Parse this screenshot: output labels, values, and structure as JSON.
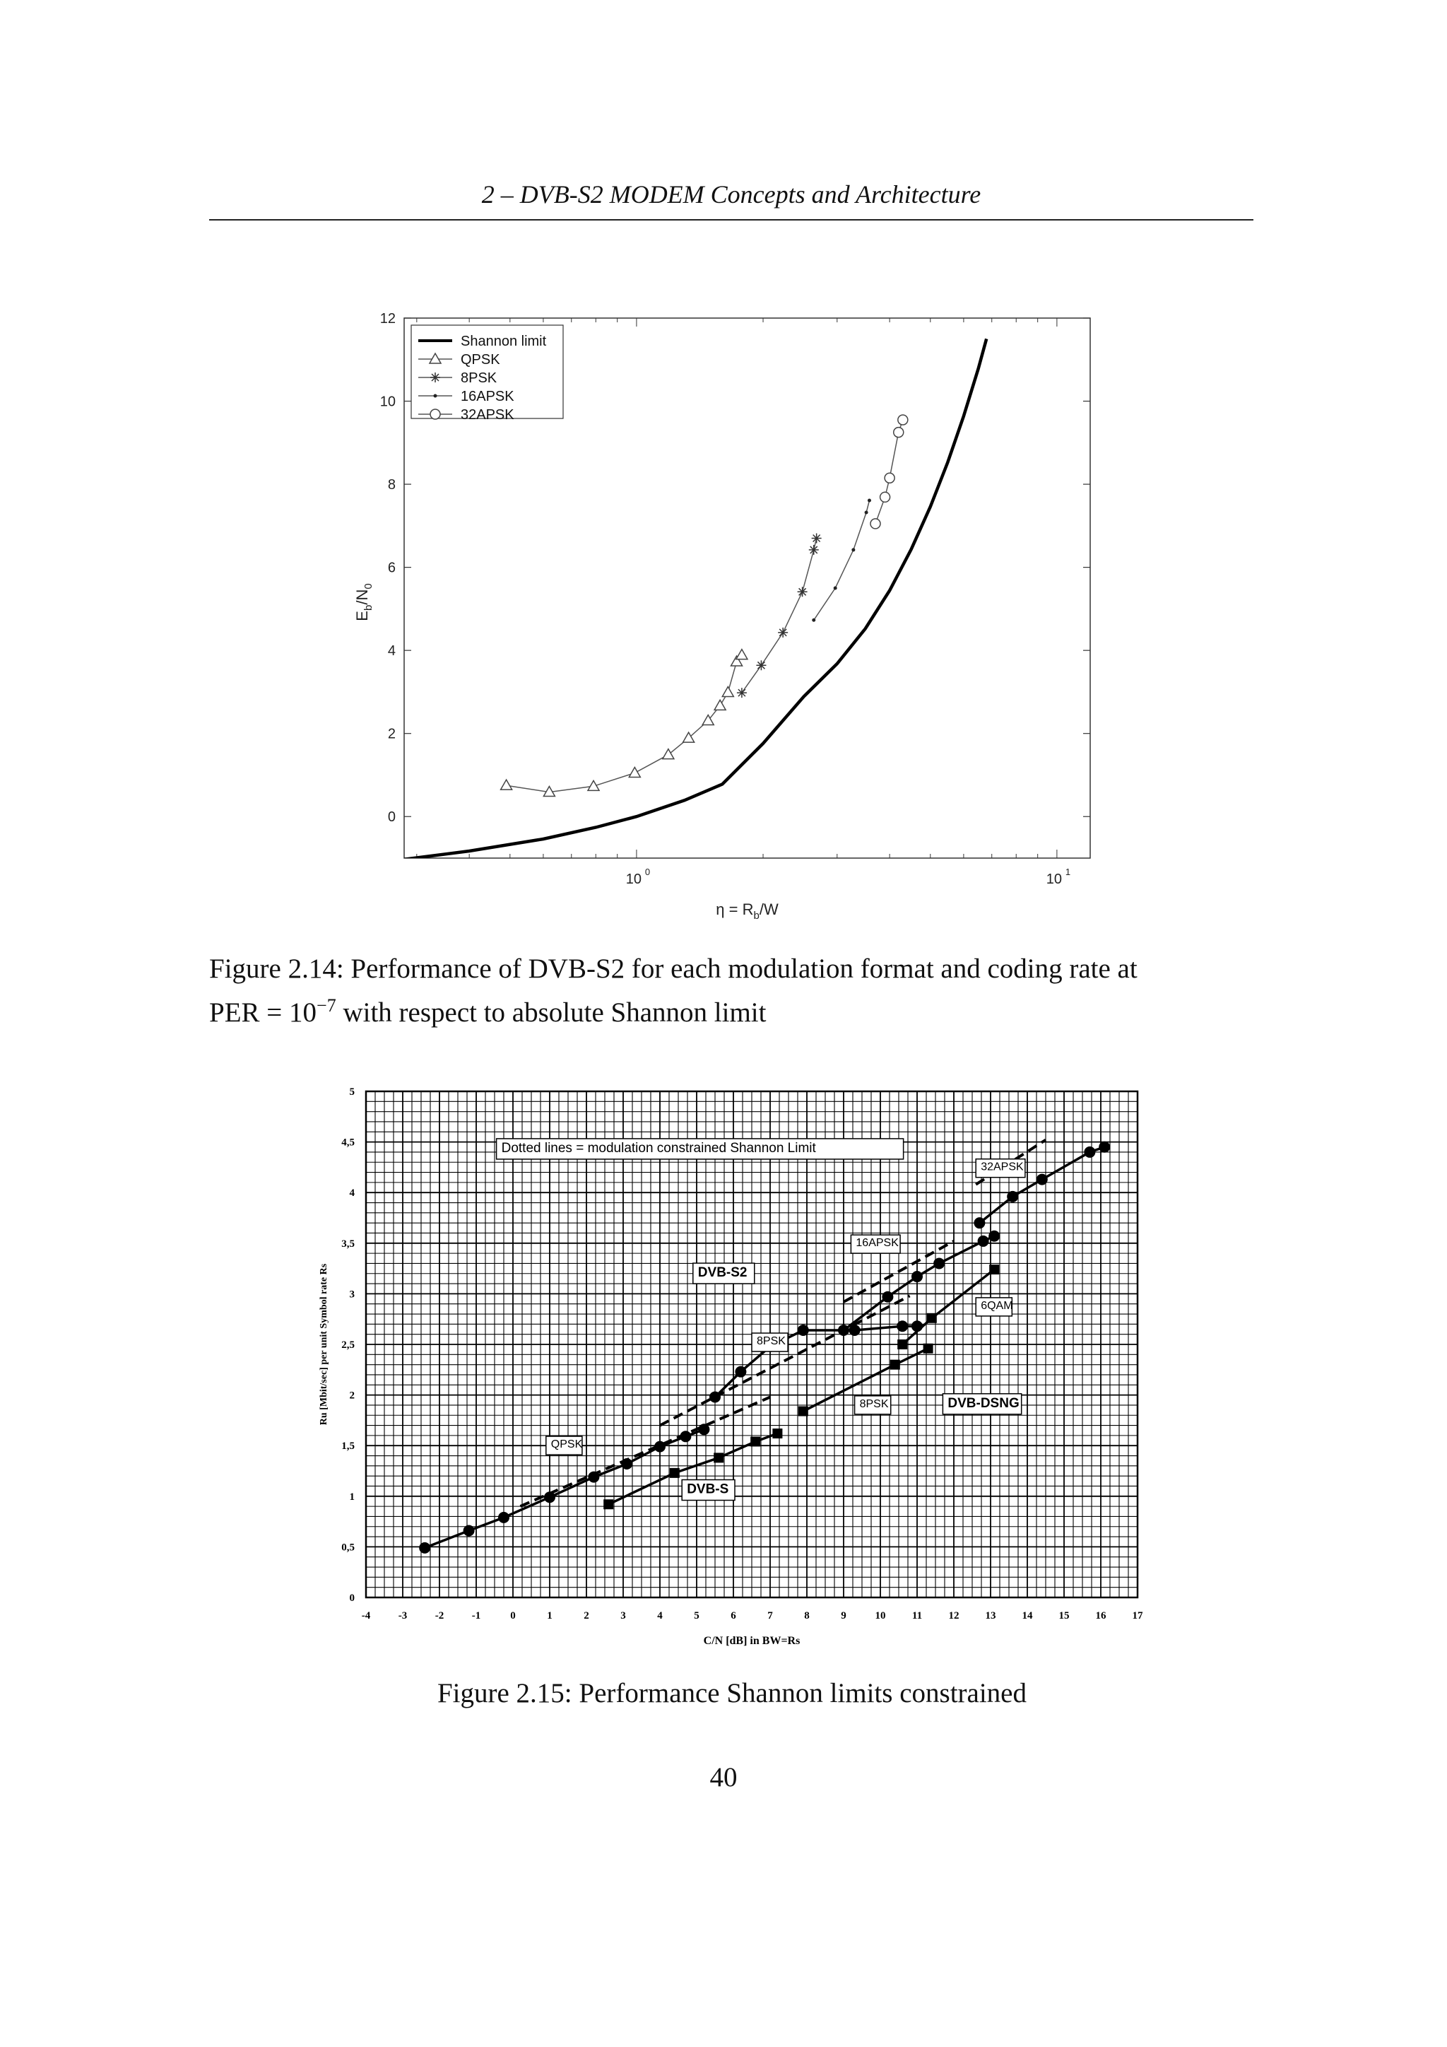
{
  "header": {
    "running_title": "2 – DVB-S2 MODEM Concepts and Architecture"
  },
  "figure1": {
    "caption_line1": "Figure 2.14: Performance of DVB-S2 for each modulation format and coding rate at",
    "caption_line2_prefix": "PER = 10",
    "caption_line2_exp": "−7",
    "caption_line2_suffix": " with respect to absolute Shannon limit"
  },
  "figure2": {
    "caption": "Figure 2.15: Performance Shannon limits constrained",
    "labels": {
      "dotted_note": "Dotted lines = modulation constrained Shannon Limit",
      "dvb_s2": "DVB-S2",
      "dvb_dsng": "DVB-DSNG",
      "dvb_s": "DVB-S",
      "qpsk": "QPSK",
      "psk8_s2": "8PSK",
      "psk8_dsng": "8PSK",
      "apsk16": "16APSK",
      "apsk32": "32APSK",
      "qam16": "6QAM"
    }
  },
  "page": {
    "number": "40"
  },
  "chart_data": [
    {
      "type": "line",
      "xlabel": "η = R_b/W",
      "ylabel": "E_b/N_0",
      "xscale": "log",
      "xlim": [
        0.28,
        12
      ],
      "ylim": [
        -1,
        12
      ],
      "yticks": [
        0,
        2,
        4,
        6,
        8,
        10,
        12
      ],
      "xtick_labels": [
        {
          "base": "10",
          "exp": "0",
          "value": 1
        },
        {
          "base": "10",
          "exp": "1",
          "value": 10
        }
      ],
      "legend_position": "top-left",
      "series": [
        {
          "name": "Shannon limit",
          "marker": "none",
          "color": "#000000",
          "x": [
            0.28,
            0.4,
            0.6,
            0.8,
            1.0,
            1.3,
            1.6,
            2.0,
            2.5,
            3.0,
            3.5,
            4.0,
            4.5,
            5.0,
            5.5,
            6.0,
            6.5,
            6.8
          ],
          "y": [
            -1.03,
            -0.83,
            -0.54,
            -0.26,
            0.0,
            0.39,
            0.78,
            1.76,
            2.89,
            3.68,
            4.52,
            5.44,
            6.43,
            7.46,
            8.53,
            9.64,
            10.78,
            11.5
          ]
        },
        {
          "name": "QPSK",
          "marker": "triangle",
          "color": "#555555",
          "x": [
            0.49,
            0.62,
            0.79,
            0.99,
            1.19,
            1.33,
            1.48,
            1.58,
            1.65,
            1.73,
            1.78
          ],
          "y": [
            0.75,
            0.59,
            0.73,
            1.05,
            1.49,
            1.89,
            2.31,
            2.67,
            2.99,
            3.73,
            3.89
          ]
        },
        {
          "name": "8PSK",
          "marker": "star",
          "color": "#555555",
          "x": [
            1.78,
            1.98,
            2.23,
            2.48,
            2.64,
            2.68
          ],
          "y": [
            2.98,
            3.64,
            4.43,
            5.41,
            6.42,
            6.7
          ]
        },
        {
          "name": "16APSK",
          "marker": "dot",
          "color": "#555555",
          "x": [
            2.64,
            2.97,
            3.28,
            3.52,
            3.58
          ],
          "y": [
            4.73,
            5.5,
            6.42,
            7.32,
            7.61
          ]
        },
        {
          "name": "32APSK",
          "marker": "circle",
          "color": "#555555",
          "x": [
            3.7,
            3.9,
            4.0,
            4.2,
            4.3
          ],
          "y": [
            7.05,
            7.69,
            8.15,
            9.25,
            9.55
          ]
        }
      ]
    },
    {
      "type": "line",
      "xlabel": "C/N [dB] in BW=Rs",
      "ylabel": "Ru [Mbit/sec] per unit Symbol rate Rs",
      "xlim": [
        -4,
        17
      ],
      "ylim": [
        0,
        5
      ],
      "xticks": [
        -4,
        -3,
        -2,
        -1,
        0,
        1,
        2,
        3,
        4,
        5,
        6,
        7,
        8,
        9,
        10,
        11,
        12,
        13,
        14,
        15,
        16,
        17
      ],
      "ytick_labels": [
        "0",
        "0,5",
        "1",
        "1,5",
        "2",
        "2,5",
        "3",
        "3,5",
        "4",
        "4,5",
        "5"
      ],
      "grid": true,
      "series": [
        {
          "name": "QPSK",
          "style": "solid",
          "marker": "circle",
          "x": [
            -2.4,
            -1.2,
            -0.25,
            1.0,
            2.2,
            3.1,
            4.0,
            4.7,
            5.2
          ],
          "y": [
            0.49,
            0.66,
            0.79,
            0.99,
            1.19,
            1.32,
            1.49,
            1.59,
            1.66
          ]
        },
        {
          "name": "8PSK",
          "style": "solid",
          "marker": "circle",
          "x": [
            5.5,
            6.2,
            7.0,
            7.9,
            9.3,
            10.6,
            11.0
          ],
          "y": [
            1.98,
            2.23,
            2.48,
            2.64,
            2.64,
            2.68,
            2.68
          ]
        },
        {
          "name": "16APSK",
          "style": "solid",
          "marker": "circle",
          "x": [
            9.0,
            10.2,
            11.0,
            11.6,
            12.8,
            13.1
          ],
          "y": [
            2.64,
            2.97,
            3.17,
            3.3,
            3.52,
            3.57
          ]
        },
        {
          "name": "32APSK",
          "style": "solid",
          "marker": "circle",
          "x": [
            12.7,
            13.6,
            14.4,
            15.7,
            16.1
          ],
          "y": [
            3.7,
            3.96,
            4.13,
            4.4,
            4.45
          ]
        },
        {
          "name": "DVB-S",
          "style": "solid",
          "marker": "square",
          "x": [
            2.6,
            4.4,
            5.6,
            6.6,
            7.2
          ],
          "y": [
            0.92,
            1.23,
            1.38,
            1.54,
            1.62
          ]
        },
        {
          "name": "DVB-DSNG 8PSK",
          "style": "solid",
          "marker": "square",
          "x": [
            7.9,
            10.4,
            11.3
          ],
          "y": [
            1.84,
            2.3,
            2.46
          ]
        },
        {
          "name": "DVB-DSNG 16QAM",
          "style": "solid",
          "marker": "square",
          "x": [
            10.6,
            11.4,
            13.1
          ],
          "y": [
            2.5,
            2.76,
            3.24
          ]
        },
        {
          "name": "QPSK constrained",
          "style": "dashed",
          "marker": "none",
          "x": [
            0.2,
            7.0
          ],
          "y": [
            0.9,
            1.98
          ]
        },
        {
          "name": "8PSK constrained",
          "style": "dashed",
          "marker": "none",
          "x": [
            4.0,
            10.8
          ],
          "y": [
            1.7,
            2.98
          ]
        },
        {
          "name": "16APSK constrained",
          "style": "dashed",
          "marker": "none",
          "x": [
            9.0,
            12.0
          ],
          "y": [
            2.92,
            3.52
          ]
        },
        {
          "name": "32APSK constrained",
          "style": "dashed",
          "marker": "none",
          "x": [
            12.6,
            14.5
          ],
          "y": [
            4.08,
            4.52
          ]
        }
      ]
    }
  ]
}
